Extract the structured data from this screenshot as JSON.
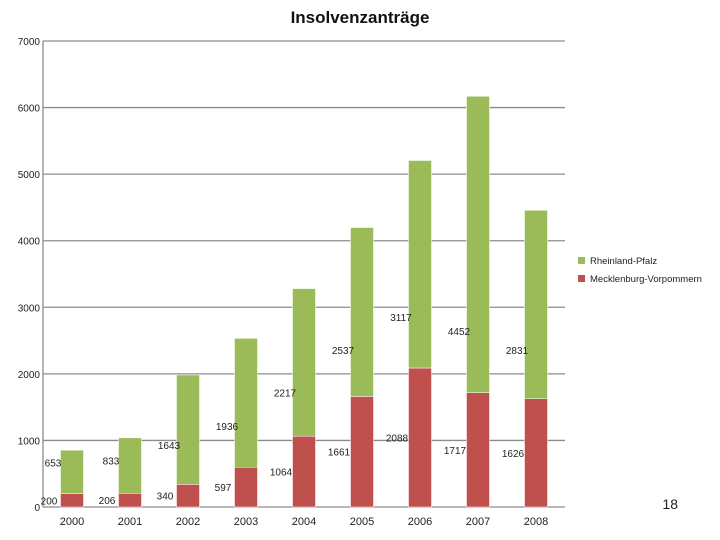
{
  "chart_data": {
    "type": "bar",
    "stacked": true,
    "title": "Insolvenzanträge",
    "xlabel": "",
    "ylabel": "",
    "ylim": [
      0,
      7000
    ],
    "yticks": [
      "0",
      "1000",
      "2000",
      "3000",
      "4000",
      "5000",
      "6000",
      "7000"
    ],
    "grid": true,
    "legend_position": "right",
    "categories": [
      "2000",
      "2001",
      "2002",
      "2003",
      "2004",
      "2005",
      "2006",
      "2007",
      "2008"
    ],
    "series": [
      {
        "name": "Mecklenburg-Vorpommern",
        "color": "#C0504D",
        "values": [
          200,
          206,
          340,
          597,
          1064,
          1661,
          2088,
          1717,
          1626
        ],
        "labels": [
          "200",
          "206",
          "340",
          "597",
          "1064",
          "1661",
          "2088",
          "1717",
          "1626"
        ]
      },
      {
        "name": "Rheinland-Pfalz",
        "color": "#9BBB59",
        "values": [
          653,
          833,
          1643,
          1936,
          2217,
          2537,
          3117,
          4452,
          2831
        ],
        "labels": [
          "653",
          "833",
          "1643",
          "1936",
          "2217",
          "2537",
          "3117",
          "4452",
          "2831"
        ]
      }
    ]
  },
  "legend": {
    "items": [
      {
        "label": "Rheinland-Pfalz",
        "color": "#9BBB59"
      },
      {
        "label": "Mecklenburg-Vorpommern",
        "color": "#C0504D"
      }
    ]
  },
  "page_number": "18"
}
